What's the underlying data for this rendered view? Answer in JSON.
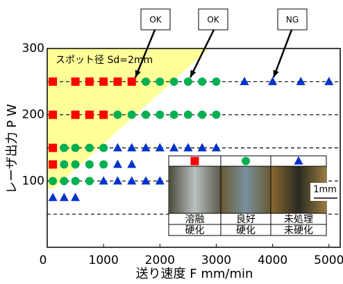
{
  "chart_data": {
    "type": "scatter",
    "spot_label": "スポット径 Sd=2mm",
    "x_label": "送り速度 F mm/min",
    "y_label": "レーザ出力 P W",
    "xlim": [
      0,
      5200
    ],
    "ylim": [
      0,
      300
    ],
    "xticks": [
      0,
      1000,
      2000,
      3000,
      4000,
      5000
    ],
    "yticks": [
      100,
      200,
      300
    ],
    "reference_lines": [
      250,
      200,
      150,
      100,
      50
    ],
    "annotations": [
      "OK",
      "OK",
      "NG"
    ],
    "series": [
      {
        "color": "#ff0000",
        "marker": "square",
        "x": [
          100,
          500,
          750,
          1000,
          1250,
          1500,
          100,
          500,
          750,
          1000,
          100,
          100
        ],
        "y": [
          250,
          250,
          250,
          250,
          250,
          250,
          200,
          200,
          200,
          200,
          150,
          125
        ]
      },
      {
        "color": "#00b050",
        "marker": "circle",
        "x": [
          1750,
          2000,
          2250,
          2500,
          2750,
          3000,
          1250,
          1500,
          1750,
          2000,
          2250,
          2500,
          2750,
          3000,
          300,
          500,
          750,
          1000,
          300,
          500,
          750,
          1000,
          100,
          300,
          500,
          750
        ],
        "y": [
          250,
          250,
          250,
          250,
          250,
          250,
          200,
          200,
          200,
          200,
          200,
          200,
          200,
          200,
          150,
          150,
          150,
          150,
          125,
          125,
          125,
          125,
          100,
          100,
          100,
          100
        ]
      },
      {
        "color": "#0033cc",
        "marker": "triangle",
        "x": [
          3500,
          4000,
          4500,
          5000,
          1250,
          1500,
          1750,
          2000,
          2250,
          2500,
          2750,
          3000,
          1250,
          1500,
          1000,
          1250,
          1500,
          1750,
          2000,
          100,
          300,
          500
        ],
        "y": [
          250,
          250,
          250,
          250,
          150,
          150,
          150,
          150,
          150,
          150,
          150,
          150,
          125,
          125,
          100,
          100,
          100,
          100,
          100,
          75,
          75,
          75
        ]
      }
    ],
    "inset": {
      "rows": [
        [
          "溶融",
          "良好",
          "未処理"
        ],
        [
          "硬化",
          "硬化",
          "未硬化"
        ]
      ],
      "scale_label": "1mm"
    }
  }
}
